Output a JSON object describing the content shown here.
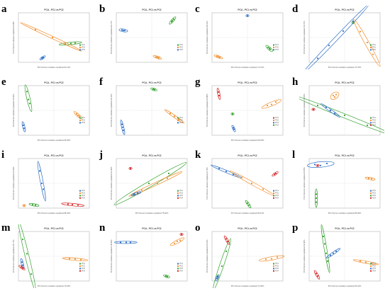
{
  "colors": {
    "blue": "#2f6fc6",
    "green": "#33a02c",
    "orange": "#f28e2b",
    "red": "#d62728",
    "frame": "#b4b4b4",
    "zero": "#d2d2d2"
  },
  "chart_data": [
    {
      "panel": "a",
      "type": "scatter",
      "title": "PCA - PC1 vs PC2",
      "xlabel": "PC1 Percent variation explained 91.14%",
      "ylabel": "PC2 Percent variation explained 6.06%",
      "series": [
        {
          "name": "PO1",
          "color": "green",
          "points": [
            [
              0.66,
              0.63
            ],
            [
              0.74,
              0.62
            ],
            [
              0.8,
              0.61
            ]
          ]
        },
        {
          "name": "PO2",
          "color": "orange",
          "points": [
            [
              0.24,
              0.34
            ],
            [
              0.48,
              0.5
            ],
            [
              0.66,
              0.62
            ]
          ]
        },
        {
          "name": "PO3",
          "color": "blue",
          "points": [
            [
              0.33,
              0.92
            ],
            [
              0.34,
              0.91
            ],
            [
              0.35,
              0.9
            ]
          ]
        }
      ]
    },
    {
      "panel": "b",
      "type": "scatter",
      "title": "PCA - PC1 vs PC2",
      "xlabel": "",
      "ylabel": "PC2 Percent variation explained 24.27%",
      "series": [
        {
          "name": "PO1",
          "color": "green",
          "points": [
            [
              0.78,
              0.18
            ],
            [
              0.79,
              0.16
            ],
            [
              0.81,
              0.13
            ]
          ]
        },
        {
          "name": "PO2",
          "color": "orange",
          "points": [
            [
              0.56,
              0.89
            ],
            [
              0.58,
              0.9
            ],
            [
              0.6,
              0.91
            ]
          ]
        },
        {
          "name": "PO3",
          "color": "blue",
          "points": [
            [
              0.08,
              0.35
            ],
            [
              0.1,
              0.36
            ],
            [
              0.12,
              0.36
            ]
          ]
        }
      ]
    },
    {
      "panel": "c",
      "type": "scatter",
      "title": "PCA - PC1 vs PC2",
      "xlabel": "PC1 Percent variation explained 71.16%",
      "ylabel": "PC2 Percent variation explained 28.31%",
      "series": [
        {
          "name": "PO1",
          "color": "green",
          "points": [
            [
              0.79,
              0.7
            ],
            [
              0.81,
              0.72
            ],
            [
              0.82,
              0.74
            ]
          ]
        },
        {
          "name": "PO2",
          "color": "orange",
          "points": [
            [
              0.07,
              0.88
            ],
            [
              0.09,
              0.89
            ],
            [
              0.11,
              0.9
            ]
          ]
        },
        {
          "name": "PO3",
          "color": "blue",
          "points": [
            [
              0.5,
              0.06
            ]
          ]
        }
      ]
    },
    {
      "panel": "d",
      "type": "scatter",
      "title": "PCA - PC1 vs PC2",
      "xlabel": "PC1 Percent variation explained 72.76%",
      "ylabel": "PC2 Percent variation explained 13.47%",
      "series": [
        {
          "name": "PO1",
          "color": "green",
          "points": [
            [
              0.62,
              0.2
            ]
          ]
        },
        {
          "name": "PO2",
          "color": "orange",
          "points": [
            [
              0.72,
              0.38
            ],
            [
              0.82,
              0.6
            ],
            [
              0.9,
              0.84
            ]
          ]
        },
        {
          "name": "PO3",
          "color": "blue",
          "points": [
            [
              0.12,
              0.92
            ],
            [
              0.28,
              0.66
            ],
            [
              0.48,
              0.37
            ],
            [
              0.62,
              0.17
            ]
          ]
        }
      ]
    },
    {
      "panel": "e",
      "type": "scatter",
      "title": "PCA - PC1 vs PC2",
      "xlabel": "PC1 Percent variation explained 82.93%",
      "ylabel": "PC2 Percent variation explained 13.06%",
      "series": [
        {
          "name": "PO1",
          "color": "green",
          "points": [
            [
              0.12,
              0.12
            ],
            [
              0.14,
              0.28
            ],
            [
              0.16,
              0.36
            ]
          ]
        },
        {
          "name": "PO2",
          "color": "orange",
          "points": [
            [
              0.82,
              0.57
            ],
            [
              0.84,
              0.6
            ],
            [
              0.86,
              0.62
            ]
          ]
        },
        {
          "name": "PO3",
          "color": "blue",
          "points": [
            [
              0.07,
              0.8
            ],
            [
              0.08,
              0.86
            ]
          ]
        }
      ]
    },
    {
      "panel": "f",
      "type": "scatter",
      "title": "PCA - PC1 vs PC2",
      "xlabel": "",
      "ylabel": "PC2 Percent variation explained 29.41%",
      "series": [
        {
          "name": "PO1",
          "color": "green",
          "points": [
            [
              0.52,
              0.07
            ],
            [
              0.54,
              0.08
            ]
          ]
        },
        {
          "name": "PO2",
          "color": "orange",
          "points": [
            [
              0.76,
              0.56
            ],
            [
              0.82,
              0.62
            ],
            [
              0.88,
              0.68
            ]
          ]
        },
        {
          "name": "PO3",
          "color": "blue",
          "points": [
            [
              0.08,
              0.78
            ],
            [
              0.09,
              0.84
            ],
            [
              0.1,
              0.9
            ]
          ]
        }
      ]
    },
    {
      "panel": "g",
      "type": "scatter",
      "title": "PCA - PC1 vs PC2",
      "xlabel": "PC1 Percent variation explained 69.18%",
      "ylabel": "PC2 Percent variation explained 22.88%",
      "series": [
        {
          "name": "PO1",
          "color": "red",
          "points": [
            [
              0.09,
              0.13
            ],
            [
              0.1,
              0.2
            ]
          ]
        },
        {
          "name": "PO2",
          "color": "orange",
          "points": [
            [
              0.78,
              0.4
            ],
            [
              0.84,
              0.38
            ],
            [
              0.9,
              0.33
            ]
          ]
        },
        {
          "name": "PO3",
          "color": "blue",
          "points": [
            [
              0.3,
              0.85
            ],
            [
              0.31,
              0.88
            ]
          ]
        },
        {
          "name": "PO4",
          "color": "green",
          "points": [
            [
              0.29,
              0.57
            ]
          ]
        }
      ]
    },
    {
      "panel": "h",
      "type": "scatter",
      "title": "PCA - PC1 vs PC2",
      "xlabel": "",
      "ylabel": "PC2 Percent variation explained 18.81%",
      "series": [
        {
          "name": "PO1",
          "color": "green",
          "points": [
            [
              0.12,
              0.4
            ],
            [
              0.5,
              0.6
            ],
            [
              0.82,
              0.8
            ]
          ]
        },
        {
          "name": "PO2",
          "color": "orange",
          "points": [
            [
              0.34,
              0.2
            ],
            [
              0.36,
              0.23
            ],
            [
              0.38,
              0.18
            ]
          ]
        },
        {
          "name": "PO3",
          "color": "blue",
          "points": [
            [
              0.24,
              0.44
            ],
            [
              0.3,
              0.5
            ],
            [
              0.36,
              0.56
            ]
          ]
        },
        {
          "name": "PO4",
          "color": "red",
          "points": [
            [
              0.06,
              0.48
            ]
          ]
        }
      ]
    },
    {
      "panel": "i",
      "type": "scatter",
      "title": "PCA - PC1 vs PC2",
      "xlabel": "PC1 Percent variation explained 88.34%",
      "ylabel": "PC2 Percent variation explained 21.64%",
      "series": [
        {
          "name": "PO1",
          "color": "blue",
          "points": [
            [
              0.3,
              0.25
            ],
            [
              0.33,
              0.5
            ],
            [
              0.35,
              0.62
            ]
          ]
        },
        {
          "name": "PO2",
          "color": "orange",
          "points": [
            [
              0.08,
              0.95
            ]
          ]
        },
        {
          "name": "PO3",
          "color": "green",
          "points": [
            [
              0.2,
              0.93
            ],
            [
              0.24,
              0.94
            ]
          ]
        },
        {
          "name": "PO4",
          "color": "red",
          "points": [
            [
              0.7,
              0.92
            ],
            [
              0.76,
              0.93
            ],
            [
              0.84,
              0.94
            ]
          ]
        }
      ]
    },
    {
      "panel": "j",
      "type": "scatter",
      "title": "PCA - PC1 vs PC2",
      "xlabel": "PC1 Percent variation explained 75.81%",
      "ylabel": "PC2 Percent variation explained 21.36%",
      "series": [
        {
          "name": "PO1",
          "color": "green",
          "points": [
            [
              0.24,
              0.72
            ],
            [
              0.46,
              0.5
            ],
            [
              0.74,
              0.3
            ]
          ]
        },
        {
          "name": "PO2",
          "color": "orange",
          "points": [
            [
              0.36,
              0.64
            ],
            [
              0.58,
              0.5
            ],
            [
              0.72,
              0.4
            ]
          ]
        },
        {
          "name": "PO3",
          "color": "blue",
          "points": [
            [
              0.26,
              0.72
            ],
            [
              0.3,
              0.7
            ]
          ]
        },
        {
          "name": "PO4",
          "color": "red",
          "points": [
            [
              0.2,
              0.2
            ]
          ]
        }
      ]
    },
    {
      "panel": "k",
      "type": "scatter",
      "title": "PCA - PC1 vs PC2",
      "xlabel": "PC1 Percent variation explained 83.11%",
      "ylabel": "PC2 Percent variation explained 9.73%",
      "series": [
        {
          "name": "PO1",
          "color": "blue",
          "points": [
            [
              0.1,
              0.2
            ],
            [
              0.2,
              0.26
            ],
            [
              0.3,
              0.32
            ]
          ]
        },
        {
          "name": "PO2",
          "color": "orange",
          "points": [
            [
              0.42,
              0.38
            ],
            [
              0.56,
              0.5
            ],
            [
              0.72,
              0.62
            ]
          ]
        },
        {
          "name": "PO3",
          "color": "green",
          "points": [
            [
              0.5,
              0.9
            ],
            [
              0.52,
              0.94
            ]
          ]
        },
        {
          "name": "PO4",
          "color": "red",
          "points": [
            [
              0.88,
              0.32
            ],
            [
              0.9,
              0.3
            ]
          ]
        }
      ]
    },
    {
      "panel": "l",
      "type": "scatter",
      "title": "PCA - PC1 vs PC2",
      "xlabel": "PC1 Percent variation explained 89.35%",
      "ylabel": "PC2 Percent variation explained 8.35%",
      "series": [
        {
          "name": "PO1",
          "color": "blue",
          "points": [
            [
              0.08,
              0.12
            ],
            [
              0.16,
              0.14
            ],
            [
              0.25,
              0.1
            ]
          ]
        },
        {
          "name": "PO2",
          "color": "orange",
          "points": [
            [
              0.84,
              0.4
            ],
            [
              0.88,
              0.41
            ]
          ]
        },
        {
          "name": "PO3",
          "color": "green",
          "points": [
            [
              0.1,
              0.72
            ],
            [
              0.1,
              0.8
            ],
            [
              0.1,
              0.88
            ]
          ]
        },
        {
          "name": "PO4",
          "color": "red",
          "points": [
            [
              0.12,
              0.14
            ]
          ]
        }
      ]
    },
    {
      "panel": "m",
      "type": "scatter",
      "title": "PCA - PC1 vs PC2",
      "xlabel": "PC1 Percent variation explained 70.18%",
      "ylabel": "PC2 Percent variation explained 26.71%",
      "series": [
        {
          "name": "PO1",
          "color": "green",
          "points": [
            [
              0.06,
              0.16
            ],
            [
              0.12,
              0.45
            ],
            [
              0.18,
              0.86
            ]
          ]
        },
        {
          "name": "PO2",
          "color": "orange",
          "points": [
            [
              0.72,
              0.55
            ],
            [
              0.8,
              0.56
            ],
            [
              0.88,
              0.57
            ]
          ]
        },
        {
          "name": "PO3",
          "color": "blue",
          "points": [
            [
              0.05,
              0.62
            ],
            [
              0.06,
              0.68
            ]
          ]
        },
        {
          "name": "PO4",
          "color": "red",
          "points": [
            [
              0.04,
              0.72
            ],
            [
              0.06,
              0.74
            ]
          ]
        }
      ]
    },
    {
      "panel": "n",
      "type": "scatter",
      "title": "PCA - PC1 vs PC2",
      "xlabel": "",
      "ylabel": "PC2 Percent variation explained 18.83%",
      "series": [
        {
          "name": "PO1",
          "color": "blue",
          "points": [
            [
              0.06,
              0.22
            ],
            [
              0.14,
              0.22
            ],
            [
              0.2,
              0.22
            ]
          ]
        },
        {
          "name": "PO2",
          "color": "orange",
          "points": [
            [
              0.82,
              0.24
            ],
            [
              0.86,
              0.2
            ],
            [
              0.9,
              0.18
            ]
          ]
        },
        {
          "name": "PO3",
          "color": "green",
          "points": [
            [
              0.7,
              0.9
            ],
            [
              0.72,
              0.91
            ]
          ]
        },
        {
          "name": "PO4",
          "color": "red",
          "points": [
            [
              0.92,
              0.06
            ]
          ]
        }
      ]
    },
    {
      "panel": "o",
      "type": "scatter",
      "title": "PCA - PC1 vs PC2",
      "xlabel": "PC1 Percent variation explained 71.66%",
      "ylabel": "PC2 Percent variation explained 25.16%",
      "series": [
        {
          "name": "PO1",
          "color": "green",
          "points": [
            [
              0.08,
              0.9
            ],
            [
              0.14,
              0.7
            ],
            [
              0.2,
              0.4
            ]
          ]
        },
        {
          "name": "PO2",
          "color": "orange",
          "points": [
            [
              0.76,
              0.56
            ],
            [
              0.84,
              0.55
            ],
            [
              0.92,
              0.52
            ]
          ]
        },
        {
          "name": "PO3",
          "color": "blue",
          "points": [
            [
              0.07,
              0.95
            ],
            [
              0.08,
              0.92
            ]
          ]
        },
        {
          "name": "PO4",
          "color": "red",
          "points": [
            [
              0.2,
              0.15
            ],
            [
              0.22,
              0.2
            ]
          ]
        }
      ]
    },
    {
      "panel": "p",
      "type": "scatter",
      "title": "PCA - PC1 vs PC2",
      "xlabel": "PC1 Percent variation explained 59.41%",
      "ylabel": "PC2 Percent variation explained 33.46%",
      "series": [
        {
          "name": "PO1",
          "color": "green",
          "points": [
            [
              0.2,
              0.1
            ],
            [
              0.22,
              0.25
            ],
            [
              0.24,
              0.44
            ],
            [
              0.26,
              0.6
            ]
          ]
        },
        {
          "name": "PO2",
          "color": "orange",
          "points": [
            [
              0.72,
              0.6
            ],
            [
              0.8,
              0.62
            ],
            [
              0.88,
              0.64
            ]
          ]
        },
        {
          "name": "PO3",
          "color": "blue",
          "points": [
            [
              0.3,
              0.48
            ],
            [
              0.34,
              0.44
            ],
            [
              0.38,
              0.4
            ]
          ]
        },
        {
          "name": "PO4",
          "color": "red",
          "points": [
            [
              0.1,
              0.85
            ],
            [
              0.12,
              0.9
            ]
          ]
        }
      ]
    }
  ]
}
